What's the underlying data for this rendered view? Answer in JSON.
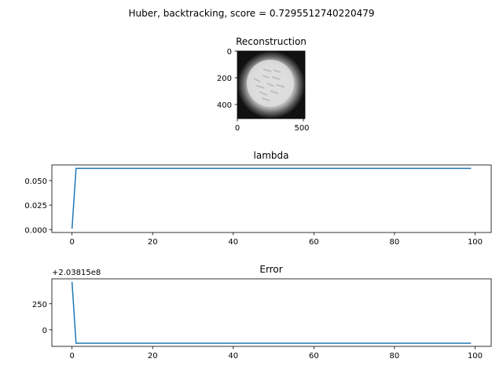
{
  "suptitle": "Huber, backtracking, score = 0.7295512740220479",
  "colors": {
    "line": "#1f77b4",
    "axis": "#000000",
    "background": "#ffffff"
  },
  "chart_data": [
    {
      "type": "image",
      "title": "Reconstruction",
      "colormap": "gray",
      "description_values": {
        "image_extent": [
          0,
          512
        ],
        "y_inverted": true
      },
      "xticks": [
        "0",
        "500"
      ],
      "yticks": [
        "0",
        "200",
        "400"
      ],
      "xlim": [
        0,
        512
      ],
      "ylim": [
        512,
        0
      ]
    },
    {
      "type": "line",
      "title": "lambda",
      "xlim": [
        -5,
        104
      ],
      "ylim": [
        -0.003,
        0.066
      ],
      "xticks": [
        0,
        20,
        40,
        60,
        80,
        100
      ],
      "yticks": [
        0.0,
        0.025,
        0.05
      ],
      "ytick_labels": [
        "0.000",
        "0.025",
        "0.050"
      ],
      "xtick_labels": [
        "0",
        "20",
        "40",
        "60",
        "80",
        "100"
      ],
      "series": [
        {
          "x_start": 0,
          "x_end": 99,
          "values_first": [
            0.001,
            0.0625
          ],
          "values_rest": 0.0625
        }
      ]
    },
    {
      "type": "line",
      "title": "Error",
      "offset_text": "+2.03815e8",
      "xlim": [
        -5,
        104
      ],
      "ylim": [
        -160,
        490
      ],
      "xticks": [
        0,
        20,
        40,
        60,
        80,
        100
      ],
      "xtick_labels": [
        "0",
        "20",
        "40",
        "60",
        "80",
        "100"
      ],
      "yticks": [
        0,
        250
      ],
      "ytick_labels": [
        "0",
        "250"
      ],
      "series": [
        {
          "x_start": 0,
          "x_end": 99,
          "values_first": [
            460,
            -130
          ],
          "values_rest": -130
        }
      ]
    }
  ]
}
